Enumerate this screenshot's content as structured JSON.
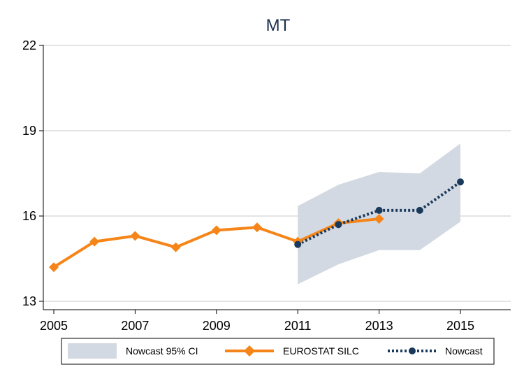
{
  "chart_data": {
    "type": "line",
    "title": "MT",
    "xlabel": "",
    "ylabel": "",
    "xlim": [
      2005,
      2016.2
    ],
    "ylim": [
      13,
      22.3
    ],
    "x_ticks": [
      "2005",
      "2007",
      "2009",
      "2011",
      "2013",
      "2015"
    ],
    "y_ticks": [
      "13",
      "16",
      "19",
      "22"
    ],
    "grid": true,
    "legend_position": "bottom",
    "series": [
      {
        "name": "Nowcast 95% CI",
        "kind": "band",
        "color": "#d3d9e2",
        "x": [
          2011,
          2012,
          2013,
          2014,
          2015
        ],
        "lower": [
          13.6,
          14.3,
          14.8,
          14.8,
          15.8
        ],
        "upper": [
          16.35,
          17.1,
          17.55,
          17.5,
          18.55
        ]
      },
      {
        "name": "EUROSTAT SILC",
        "kind": "line",
        "color": "#f58518",
        "marker": "diamond",
        "x": [
          2005,
          2006,
          2007,
          2008,
          2009,
          2010,
          2011,
          2012,
          2013
        ],
        "values": [
          14.2,
          15.1,
          15.3,
          14.9,
          15.5,
          15.6,
          15.1,
          15.75,
          15.9
        ]
      },
      {
        "name": "Nowcast",
        "kind": "dotted-line",
        "color": "#1a3a5c",
        "marker": "circle",
        "x": [
          2011,
          2012,
          2013,
          2014,
          2015
        ],
        "values": [
          15.0,
          15.7,
          16.2,
          16.2,
          17.2
        ]
      }
    ]
  }
}
